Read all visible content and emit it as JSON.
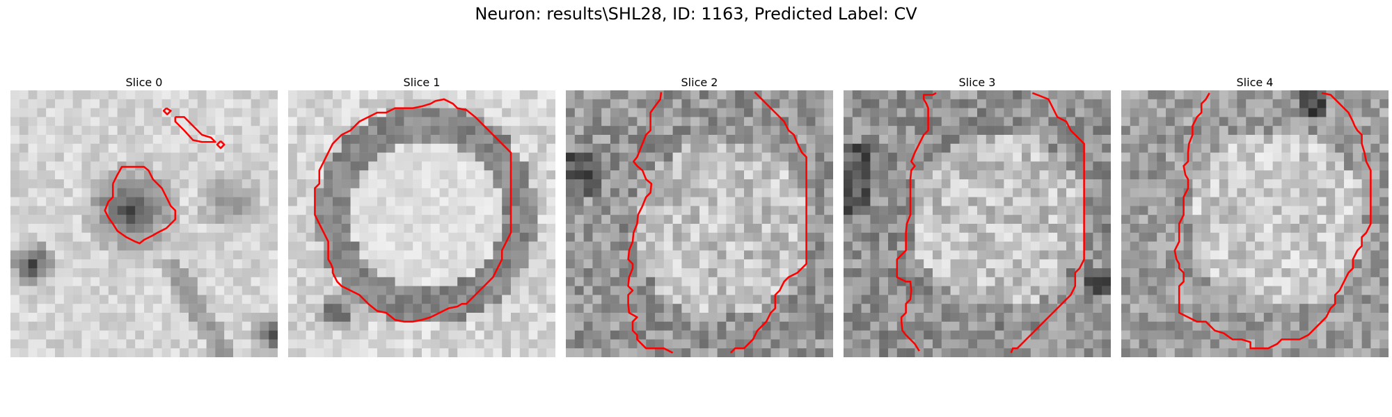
{
  "figure": {
    "title": "Neuron: results\\SHL28, ID: 1163, Predicted Label: CV"
  },
  "slices": [
    {
      "title": "Slice 0"
    },
    {
      "title": "Slice 1"
    },
    {
      "title": "Slice 2"
    },
    {
      "title": "Slice 3"
    },
    {
      "title": "Slice 4"
    }
  ],
  "colors": {
    "contour": "#ff0000",
    "colormap": "gray",
    "background": "#ffffff"
  }
}
